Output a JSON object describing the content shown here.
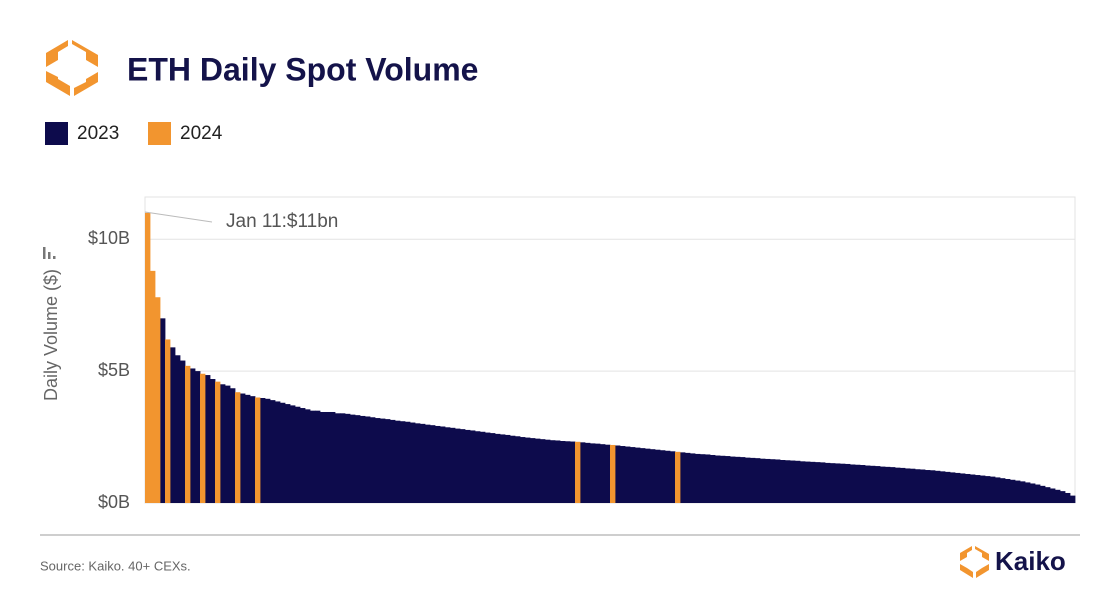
{
  "chart_data": {
    "type": "bar",
    "title": "ETH Daily Spot Volume",
    "y_label": "Daily Volume ($)",
    "source": "Source: Kaiko. 40+ CEXs.",
    "brand": "Kaiko",
    "annotation": "Jan 11:$11bn",
    "ylim": [
      0,
      11.6
    ],
    "yticks": [
      {
        "value": 0,
        "label": "$0B"
      },
      {
        "value": 5,
        "label": "$5B"
      },
      {
        "value": 10,
        "label": "$10B"
      }
    ],
    "grid": true,
    "legend": "top-left",
    "series": [
      {
        "name": "2023",
        "color": "#0d0b4c",
        "values": [
          null,
          null,
          null,
          7.0,
          null,
          5.9,
          5.6,
          5.4,
          null,
          5.1,
          5.0,
          null,
          4.85,
          4.7,
          null,
          4.5,
          4.45,
          4.35,
          null,
          4.15,
          4.1,
          4.05,
          null,
          3.98,
          3.95,
          3.9,
          3.85,
          3.8,
          3.75,
          3.7,
          3.65,
          3.6,
          3.55,
          3.5,
          3.5,
          3.45,
          3.45,
          3.45,
          3.4,
          3.4,
          3.38,
          3.35,
          3.33,
          3.3,
          3.28,
          3.25,
          3.22,
          3.2,
          3.18,
          3.15,
          3.12,
          3.1,
          3.08,
          3.05,
          3.02,
          3.0,
          2.97,
          2.95,
          2.92,
          2.9,
          2.87,
          2.85,
          2.82,
          2.8,
          2.77,
          2.75,
          2.72,
          2.7,
          2.67,
          2.65,
          2.62,
          2.6,
          2.58,
          2.55,
          2.53,
          2.5,
          2.48,
          2.46,
          2.44,
          2.42,
          2.4,
          2.38,
          2.37,
          2.35,
          2.34,
          2.33,
          null,
          2.3,
          2.28,
          2.26,
          2.25,
          2.23,
          2.21,
          null,
          2.18,
          2.16,
          2.14,
          2.12,
          2.1,
          2.08,
          2.06,
          2.04,
          2.02,
          2.0,
          1.98,
          1.96,
          null,
          1.92,
          1.9,
          1.88,
          1.86,
          1.85,
          1.84,
          1.82,
          1.8,
          1.79,
          1.78,
          1.76,
          1.75,
          1.74,
          1.72,
          1.71,
          1.7,
          1.68,
          1.67,
          1.66,
          1.65,
          1.63,
          1.62,
          1.61,
          1.6,
          1.58,
          1.57,
          1.56,
          1.55,
          1.54,
          1.52,
          1.51,
          1.5,
          1.49,
          1.48,
          1.46,
          1.45,
          1.44,
          1.42,
          1.41,
          1.4,
          1.38,
          1.37,
          1.36,
          1.34,
          1.33,
          1.31,
          1.3,
          1.28,
          1.27,
          1.25,
          1.24,
          1.22,
          1.2,
          1.18,
          1.16,
          1.14,
          1.12,
          1.1,
          1.08,
          1.06,
          1.04,
          1.02,
          1.0,
          0.97,
          0.94,
          0.91,
          0.88,
          0.85,
          0.82,
          0.78,
          0.74,
          0.7,
          0.65,
          0.6,
          0.55,
          0.5,
          0.45,
          0.38,
          0.28
        ]
      },
      {
        "name": "2024",
        "color": "#f2952f",
        "values": [
          11,
          8.8,
          7.8,
          null,
          6.2,
          null,
          null,
          null,
          5.2,
          null,
          null,
          4.9,
          null,
          null,
          4.6,
          null,
          null,
          null,
          4.2,
          null,
          null,
          null,
          4.0,
          null,
          null,
          null,
          null,
          null,
          null,
          null,
          null,
          null,
          null,
          null,
          null,
          null,
          null,
          null,
          null,
          null,
          null,
          null,
          null,
          null,
          null,
          null,
          null,
          null,
          null,
          null,
          null,
          null,
          null,
          null,
          null,
          null,
          null,
          null,
          null,
          null,
          null,
          null,
          null,
          null,
          null,
          null,
          null,
          null,
          null,
          null,
          null,
          null,
          null,
          null,
          null,
          null,
          null,
          null,
          null,
          null,
          null,
          null,
          null,
          null,
          null,
          null,
          2.32,
          null,
          null,
          null,
          null,
          null,
          null,
          2.2,
          null,
          null,
          null,
          null,
          null,
          null,
          null,
          null,
          null,
          null,
          null,
          null,
          1.94,
          null,
          null,
          null,
          null,
          null,
          null,
          null,
          null,
          null,
          null,
          null,
          null,
          null,
          null,
          null,
          null,
          null,
          null,
          null,
          null,
          null,
          null,
          null,
          null,
          null,
          null,
          null,
          null,
          null,
          null,
          null,
          null,
          null,
          null,
          null,
          null,
          null,
          null,
          null,
          null,
          null,
          null,
          null,
          null,
          null,
          null,
          null,
          null,
          null,
          null,
          null,
          null,
          null,
          null,
          null,
          null,
          null,
          null,
          null,
          null,
          null,
          null,
          null,
          null,
          null,
          null,
          null,
          null,
          null,
          null,
          null,
          null,
          null,
          null,
          null,
          null,
          null,
          null,
          null
        ]
      }
    ]
  }
}
